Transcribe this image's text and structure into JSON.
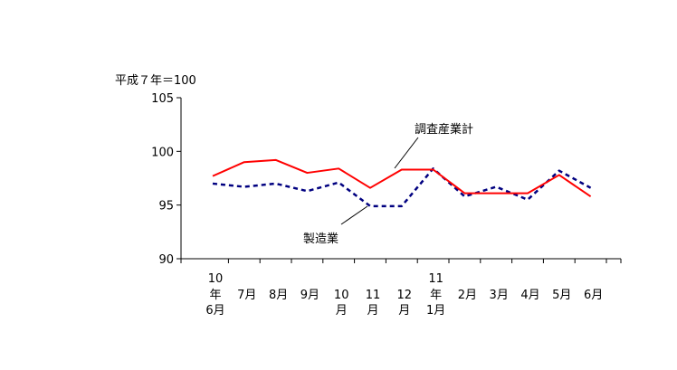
{
  "chart_data": {
    "type": "line",
    "ylabel": "平成７年＝100",
    "ylim": [
      90,
      105
    ],
    "yticks": [
      90,
      95,
      100,
      105
    ],
    "categories": [
      [
        "10",
        "年",
        "6月"
      ],
      [
        "",
        "7月",
        ""
      ],
      [
        "",
        "8月",
        ""
      ],
      [
        "",
        "9月",
        ""
      ],
      [
        "",
        "10",
        "月"
      ],
      [
        "",
        "11",
        "月"
      ],
      [
        "",
        "12",
        "月"
      ],
      [
        "11",
        "年",
        "1月"
      ],
      [
        "",
        "2月",
        ""
      ],
      [
        "",
        "3月",
        ""
      ],
      [
        "",
        "4月",
        ""
      ],
      [
        "",
        "5月",
        ""
      ],
      [
        "",
        "6月",
        ""
      ]
    ],
    "series": [
      {
        "name": "調査産業計",
        "color": "#ff0000",
        "style": "solid",
        "values": [
          97.7,
          99.0,
          99.2,
          98.0,
          98.4,
          96.6,
          98.3,
          98.3,
          96.1,
          96.1,
          96.1,
          97.8,
          95.8
        ]
      },
      {
        "name": "製造業",
        "color": "#000080",
        "style": "dashed",
        "values": [
          97.0,
          96.7,
          97.0,
          96.3,
          97.1,
          94.9,
          94.9,
          98.4,
          95.8,
          96.7,
          95.5,
          98.2,
          96.6
        ]
      }
    ],
    "grid": false,
    "legend": "none"
  }
}
